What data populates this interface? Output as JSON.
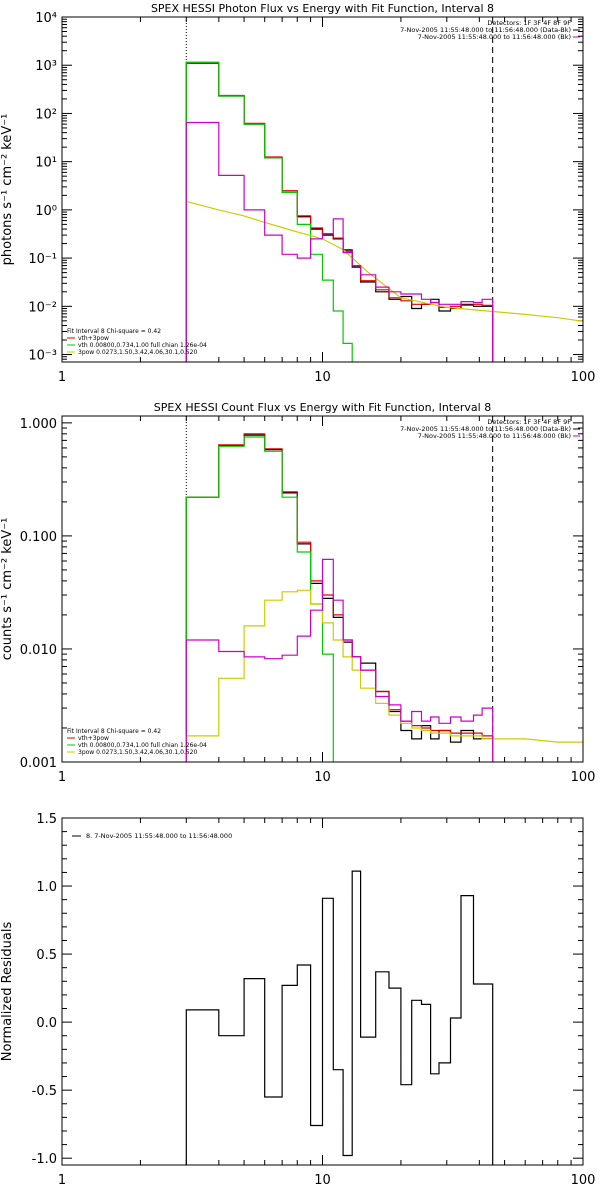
{
  "chart_data": [
    {
      "type": "line",
      "title": "SPEX HESSI Photon Flux vs Energy with Fit Function, Interval 8",
      "ylabel": "photons s⁻¹ cm⁻² keV⁻¹",
      "xlabel": "",
      "xscale": "log",
      "yscale": "log",
      "xlim": [
        1,
        100
      ],
      "ylim": [
        0.0007,
        10000
      ],
      "x_ticks": [
        {
          "v": 1,
          "label": "1"
        },
        {
          "v": 10,
          "label": "10"
        },
        {
          "v": 100,
          "label": "100"
        }
      ],
      "y_ticks": [
        {
          "v": 0.001,
          "label": "10⁻³"
        },
        {
          "v": 0.01,
          "label": "10⁻²"
        },
        {
          "v": 0.1,
          "label": "10⁻¹"
        },
        {
          "v": 1,
          "label": "10⁰"
        },
        {
          "v": 10,
          "label": "10¹"
        },
        {
          "v": 100,
          "label": "10²"
        },
        {
          "v": 1000,
          "label": "10³"
        },
        {
          "v": 10000,
          "label": "10⁴"
        }
      ],
      "vlines": [
        {
          "x": 3,
          "style": "dotted"
        },
        {
          "x": 45,
          "style": "dashed"
        }
      ],
      "legend_tr": [
        {
          "text": "Detectors: 1F 3F 4F 8F 9F",
          "color": "#000000"
        },
        {
          "text": "7-Nov-2005 11:55:48.000 to 11:56:48.000 (Data-Bk)",
          "color": "#000000"
        },
        {
          "text": "7-Nov-2005 11:55:48.000 to 11:56:48.000 (Bk)",
          "color": "#cc00cc"
        }
      ],
      "legend_bl": [
        {
          "text": "Fit Interval  8    Chi-square = 0.42",
          "color": null
        },
        {
          "text": "vth+3pow",
          "color": "#dd0000"
        },
        {
          "text": "vth 0.00800,0.734,1.00   full chian 1.26e-04",
          "color": "#00cc00"
        },
        {
          "text": "3pow 0.0273,1.50,3.42,4.06,30.1,0.520",
          "color": "#cccc00"
        }
      ],
      "series": [
        {
          "color": "#000000",
          "kind": "step",
          "edges": [
            3,
            4,
            5,
            6,
            7,
            8,
            9,
            10,
            11,
            12,
            13,
            14,
            16,
            18,
            20,
            22,
            24,
            26,
            28,
            31,
            34,
            38,
            41,
            45
          ],
          "values": [
            1100,
            230,
            60,
            12,
            2.3,
            0.72,
            0.4,
            0.3,
            0.25,
            0.14,
            0.065,
            0.032,
            0.02,
            0.014,
            0.016,
            0.009,
            0.011,
            0.014,
            0.008,
            0.009,
            0.011,
            0.01,
            0.01
          ]
        },
        {
          "color": "#dd0000",
          "kind": "step",
          "edges": [
            3,
            4,
            5,
            6,
            7,
            8,
            9,
            10,
            11,
            12,
            13,
            14,
            16,
            18,
            20,
            22,
            24,
            26,
            28,
            31,
            34,
            38,
            41,
            45
          ],
          "values": [
            1150,
            235,
            62,
            12.5,
            2.5,
            0.75,
            0.42,
            0.32,
            0.26,
            0.15,
            0.07,
            0.034,
            0.022,
            0.015,
            0.013,
            0.011,
            0.011,
            0.012,
            0.0095,
            0.01,
            0.0105,
            0.011,
            0.0105
          ]
        },
        {
          "color": "#00cc00",
          "kind": "step",
          "edges": [
            3,
            4,
            5,
            6,
            7,
            8,
            9,
            10,
            11,
            12,
            13
          ],
          "values": [
            1150,
            230,
            60,
            12,
            2.3,
            0.5,
            0.12,
            0.035,
            0.008,
            0.0017
          ]
        },
        {
          "color": "#cccc00",
          "kind": "line",
          "x": [
            3,
            4,
            5,
            6,
            7,
            8,
            10,
            12,
            15,
            20,
            30,
            45,
            60,
            80,
            100
          ],
          "y": [
            1.5,
            1.0,
            0.75,
            0.55,
            0.43,
            0.35,
            0.25,
            0.15,
            0.05,
            0.015,
            0.0095,
            0.0078,
            0.0068,
            0.0058,
            0.0049
          ]
        },
        {
          "color": "#cc00cc",
          "kind": "step",
          "edges": [
            3,
            4,
            5,
            6,
            7,
            8,
            9,
            10,
            11,
            12,
            13,
            14,
            16,
            18,
            20,
            22,
            24,
            26,
            28,
            31,
            34,
            38,
            41,
            45
          ],
          "values": [
            65,
            5.2,
            1.0,
            0.3,
            0.12,
            0.1,
            0.25,
            0.32,
            0.65,
            0.13,
            0.07,
            0.045,
            0.025,
            0.02,
            0.018,
            0.018,
            0.014,
            0.012,
            0.011,
            0.011,
            0.0125,
            0.012,
            0.014
          ]
        }
      ]
    },
    {
      "type": "line",
      "title": "SPEX HESSI Count Flux vs Energy with Fit Function, Interval 8",
      "ylabel": "counts s⁻¹ cm⁻² keV⁻¹",
      "xlabel": "",
      "xscale": "log",
      "yscale": "log",
      "xlim": [
        1,
        100
      ],
      "ylim": [
        0.001,
        1.15
      ],
      "x_ticks": [
        {
          "v": 1,
          "label": "1"
        },
        {
          "v": 10,
          "label": "10"
        },
        {
          "v": 100,
          "label": "100"
        }
      ],
      "y_ticks": [
        {
          "v": 0.001,
          "label": "0.001"
        },
        {
          "v": 0.01,
          "label": "0.010"
        },
        {
          "v": 0.1,
          "label": "0.100"
        },
        {
          "v": 1,
          "label": "1.000"
        }
      ],
      "vlines": [
        {
          "x": 3,
          "style": "dotted"
        },
        {
          "x": 45,
          "style": "dashed"
        }
      ],
      "legend_tr": [
        {
          "text": "Detectors: 1F 3F 4F 8F 9F",
          "color": "#000000"
        },
        {
          "text": "7-Nov-2005 11:55:48.000 to 11:56:48.000 (Data-Bk)",
          "color": "#000000"
        },
        {
          "text": "7-Nov-2005 11:55:48.000 to 11:56:48.000 (Bk)",
          "color": "#cc00cc"
        }
      ],
      "legend_bl": [
        {
          "text": "Fit Interval  8    Chi-square = 0.42",
          "color": null
        },
        {
          "text": "vth+3pow",
          "color": "#dd0000"
        },
        {
          "text": "vth 0.00800,0.734,1.00   full chian 1.26e-04",
          "color": "#00cc00"
        },
        {
          "text": "3pow 0.0273,1.50,3.42,4.06,30.1,0.520",
          "color": "#cccc00"
        }
      ],
      "series": [
        {
          "color": "#000000",
          "kind": "step",
          "edges": [
            3,
            4,
            5,
            6,
            7,
            8,
            9,
            10,
            11,
            12,
            13,
            14,
            16,
            18,
            20,
            22,
            24,
            26,
            28,
            31,
            34,
            38,
            41,
            45
          ],
          "values": [
            0.22,
            0.63,
            0.78,
            0.58,
            0.24,
            0.085,
            0.038,
            0.028,
            0.019,
            0.0115,
            0.0085,
            0.0075,
            0.0042,
            0.0028,
            0.0019,
            0.0016,
            0.0021,
            0.0016,
            0.0019,
            0.0015,
            0.0019,
            0.0016,
            0.0016
          ]
        },
        {
          "color": "#dd0000",
          "kind": "step",
          "edges": [
            3,
            4,
            5,
            6,
            7,
            8,
            9,
            10,
            11,
            12,
            13,
            14,
            16,
            18,
            20,
            22,
            24,
            26,
            28,
            31,
            34,
            38,
            41,
            45
          ],
          "values": [
            0.22,
            0.64,
            0.8,
            0.59,
            0.245,
            0.088,
            0.04,
            0.03,
            0.02,
            0.012,
            0.0085,
            0.0065,
            0.0042,
            0.0029,
            0.0023,
            0.0021,
            0.002,
            0.0019,
            0.0019,
            0.0018,
            0.0018,
            0.0018,
            0.0017
          ]
        },
        {
          "color": "#00cc00",
          "kind": "step",
          "edges": [
            3,
            4,
            5,
            6,
            7,
            8,
            9,
            10,
            11
          ],
          "values": [
            0.22,
            0.62,
            0.75,
            0.56,
            0.22,
            0.072,
            0.025,
            0.009
          ]
        },
        {
          "color": "#cccc00",
          "kind": "step",
          "edges": [
            3,
            4,
            5,
            6,
            7,
            8,
            9,
            10,
            11,
            12,
            13,
            14,
            16,
            18,
            20,
            22,
            24,
            26,
            28,
            31,
            34,
            38,
            41,
            45
          ],
          "values": [
            0.0017,
            0.0055,
            0.016,
            0.027,
            0.032,
            0.033,
            0.025,
            0.017,
            0.012,
            0.0085,
            0.0065,
            0.0045,
            0.0033,
            0.0026,
            0.0022,
            0.002,
            0.0019,
            0.0018,
            0.0018,
            0.0017,
            0.0017,
            0.0017,
            0.0016
          ]
        },
        {
          "color": "#cccc00",
          "kind": "line",
          "x": [
            45,
            60,
            80,
            100
          ],
          "y": [
            0.0016,
            0.0016,
            0.0015,
            0.0015
          ]
        },
        {
          "color": "#cc00cc",
          "kind": "step",
          "edges": [
            3,
            4,
            5,
            6,
            7,
            8,
            9,
            10,
            11,
            12,
            13,
            14,
            16,
            18,
            20,
            22,
            24,
            26,
            28,
            31,
            34,
            38,
            41,
            45
          ],
          "values": [
            0.012,
            0.0095,
            0.0085,
            0.0082,
            0.0088,
            0.013,
            0.022,
            0.062,
            0.027,
            0.012,
            0.0085,
            0.0065,
            0.0038,
            0.0032,
            0.0023,
            0.0028,
            0.0023,
            0.0025,
            0.0022,
            0.0025,
            0.0023,
            0.0026,
            0.003
          ]
        }
      ]
    },
    {
      "type": "line",
      "title": "",
      "ylabel": "Normalized Residuals",
      "xlabel": "",
      "xscale": "log",
      "yscale": "linear",
      "xlim": [
        1,
        100
      ],
      "ylim": [
        -1.05,
        1.5
      ],
      "x_ticks": [
        {
          "v": 1,
          "label": "1"
        },
        {
          "v": 10,
          "label": "10"
        },
        {
          "v": 100,
          "label": "100"
        }
      ],
      "y_ticks": [
        {
          "v": -1.0,
          "label": "-1.0"
        },
        {
          "v": -0.5,
          "label": "-0.5"
        },
        {
          "v": 0.0,
          "label": "0.0"
        },
        {
          "v": 0.5,
          "label": "0.5"
        },
        {
          "v": 1.0,
          "label": "1.0"
        },
        {
          "v": 1.5,
          "label": "1.5"
        }
      ],
      "vlines": [],
      "legend_tr": [],
      "legend_tl": [
        {
          "text": "8.  7-Nov-2005 11:55:48.000 to 11:56:48.000",
          "color": "#000000"
        }
      ],
      "legend_bl": [],
      "series": [
        {
          "color": "#000000",
          "kind": "step",
          "drop_to": -1.05,
          "edges": [
            3,
            4,
            5,
            6,
            7,
            8,
            9,
            10,
            11,
            12,
            13,
            14,
            16,
            18,
            20,
            22,
            24,
            26,
            28,
            31,
            34,
            38,
            41,
            45
          ],
          "values": [
            0.09,
            -0.1,
            0.32,
            -0.55,
            0.27,
            0.42,
            -0.76,
            0.91,
            -0.35,
            -0.98,
            1.11,
            -0.11,
            0.37,
            0.25,
            -0.46,
            0.16,
            0.13,
            -0.38,
            -0.3,
            0.03,
            0.93,
            0.28,
            0.28
          ]
        }
      ]
    }
  ]
}
